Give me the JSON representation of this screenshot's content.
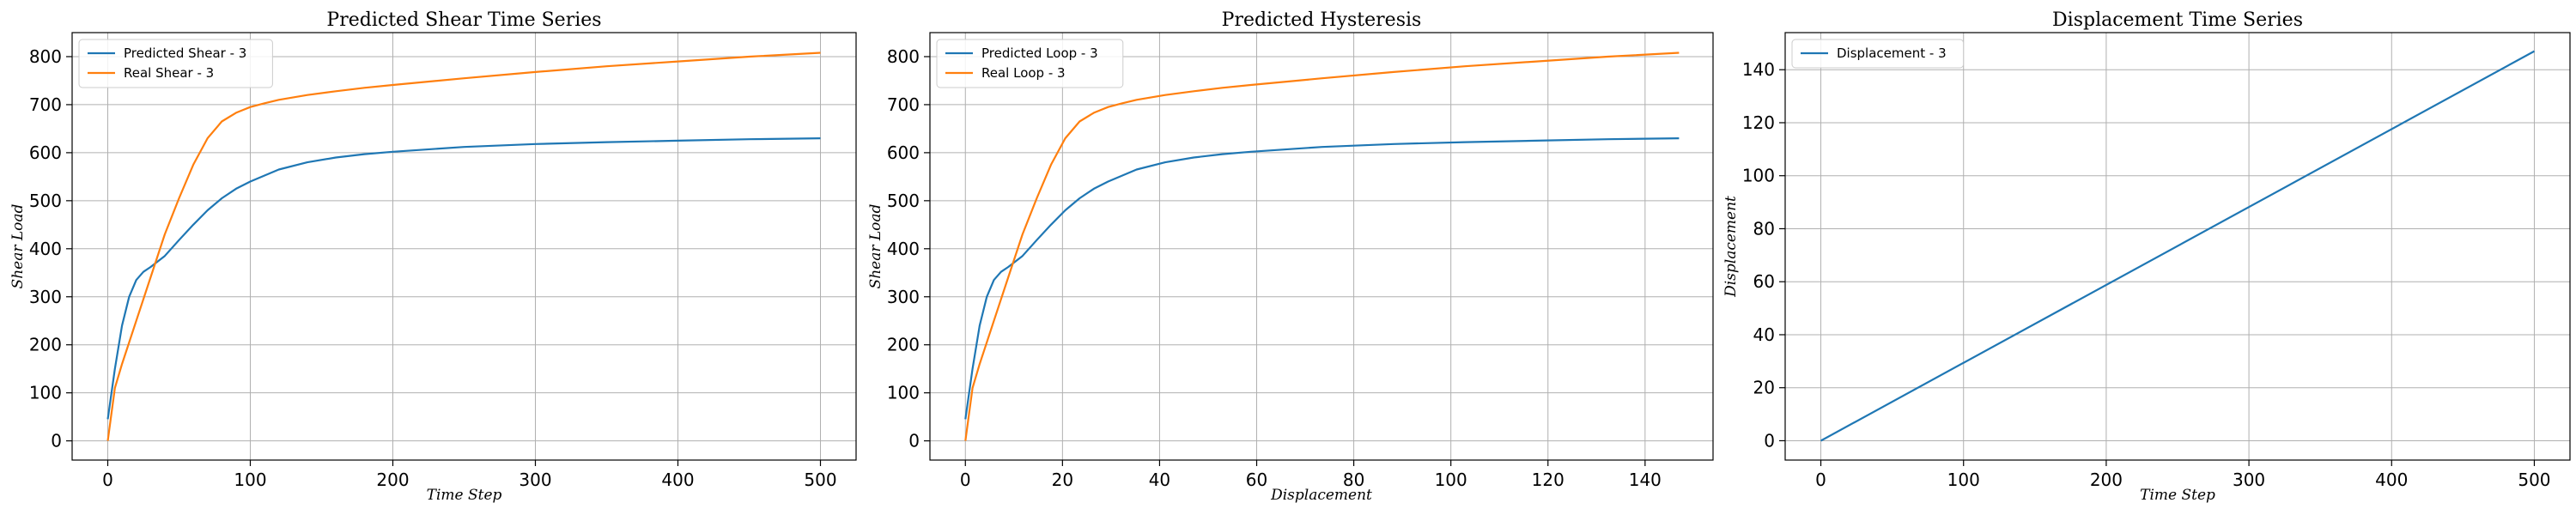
{
  "chart_data": [
    {
      "type": "line",
      "title": "Predicted Shear Time Series",
      "xlabel": "Time Step",
      "ylabel": "Shear Load",
      "xlim": [
        -25,
        525
      ],
      "ylim": [
        -40,
        850
      ],
      "xticks": [
        0,
        100,
        200,
        300,
        400,
        500
      ],
      "yticks": [
        0,
        100,
        200,
        300,
        400,
        500,
        600,
        700,
        800
      ],
      "grid": true,
      "legend_position": "top-left",
      "series": [
        {
          "name": "Predicted Shear - 3",
          "color": "#1f77b4",
          "x": [
            0,
            5,
            10,
            15,
            20,
            25,
            30,
            40,
            50,
            60,
            70,
            80,
            90,
            100,
            120,
            140,
            160,
            180,
            200,
            250,
            300,
            350,
            400,
            450,
            500
          ],
          "y": [
            45,
            150,
            240,
            300,
            335,
            352,
            362,
            385,
            418,
            450,
            480,
            505,
            525,
            540,
            565,
            580,
            590,
            597,
            602,
            612,
            618,
            622,
            625,
            628,
            630
          ]
        },
        {
          "name": "Real Shear - 3",
          "color": "#ff7f0e",
          "x": [
            0,
            5,
            10,
            20,
            30,
            40,
            50,
            60,
            70,
            80,
            90,
            100,
            110,
            120,
            140,
            160,
            180,
            200,
            250,
            300,
            350,
            400,
            450,
            500
          ],
          "y": [
            0,
            110,
            160,
            250,
            340,
            430,
            505,
            575,
            630,
            665,
            683,
            695,
            703,
            710,
            720,
            728,
            735,
            741,
            755,
            768,
            780,
            790,
            800,
            808
          ]
        }
      ]
    },
    {
      "type": "line",
      "title": "Predicted Hysteresis",
      "xlabel": "Displacement",
      "ylabel": "Shear Load",
      "xlim": [
        -7.3,
        154
      ],
      "ylim": [
        -40,
        850
      ],
      "xticks": [
        0,
        20,
        40,
        60,
        80,
        100,
        120,
        140
      ],
      "yticks": [
        0,
        100,
        200,
        300,
        400,
        500,
        600,
        700,
        800
      ],
      "grid": true,
      "legend_position": "top-left",
      "series": [
        {
          "name": "Predicted Loop - 3",
          "color": "#1f77b4",
          "x": [
            0,
            1.47,
            2.94,
            4.41,
            5.88,
            7.35,
            8.82,
            11.76,
            14.7,
            17.64,
            20.58,
            23.52,
            26.46,
            29.4,
            35.28,
            41.16,
            47.04,
            52.92,
            58.8,
            73.5,
            88.2,
            102.9,
            117.6,
            132.3,
            147
          ],
          "y": [
            45,
            150,
            240,
            300,
            335,
            352,
            362,
            385,
            418,
            450,
            480,
            505,
            525,
            540,
            565,
            580,
            590,
            597,
            602,
            612,
            618,
            622,
            625,
            628,
            630
          ]
        },
        {
          "name": "Real Loop - 3",
          "color": "#ff7f0e",
          "x": [
            0,
            1.47,
            2.94,
            5.88,
            8.82,
            11.76,
            14.7,
            17.64,
            20.58,
            23.52,
            26.46,
            29.4,
            32.34,
            35.28,
            41.16,
            47.04,
            52.92,
            58.8,
            73.5,
            88.2,
            102.9,
            117.6,
            132.3,
            147
          ],
          "y": [
            0,
            110,
            160,
            250,
            340,
            430,
            505,
            575,
            630,
            665,
            683,
            695,
            703,
            710,
            720,
            728,
            735,
            741,
            755,
            768,
            780,
            790,
            800,
            808
          ]
        }
      ]
    },
    {
      "type": "line",
      "title": "Displacement Time Series",
      "xlabel": "Time Step",
      "ylabel": "Displacement",
      "xlim": [
        -25,
        525
      ],
      "ylim": [
        -7.3,
        154
      ],
      "xticks": [
        0,
        100,
        200,
        300,
        400,
        500
      ],
      "yticks": [
        0,
        20,
        40,
        60,
        80,
        100,
        120,
        140
      ],
      "grid": true,
      "legend_position": "top-left",
      "series": [
        {
          "name": "Displacement - 3",
          "color": "#1f77b4",
          "x": [
            0,
            500
          ],
          "y": [
            0,
            147
          ]
        }
      ]
    }
  ]
}
